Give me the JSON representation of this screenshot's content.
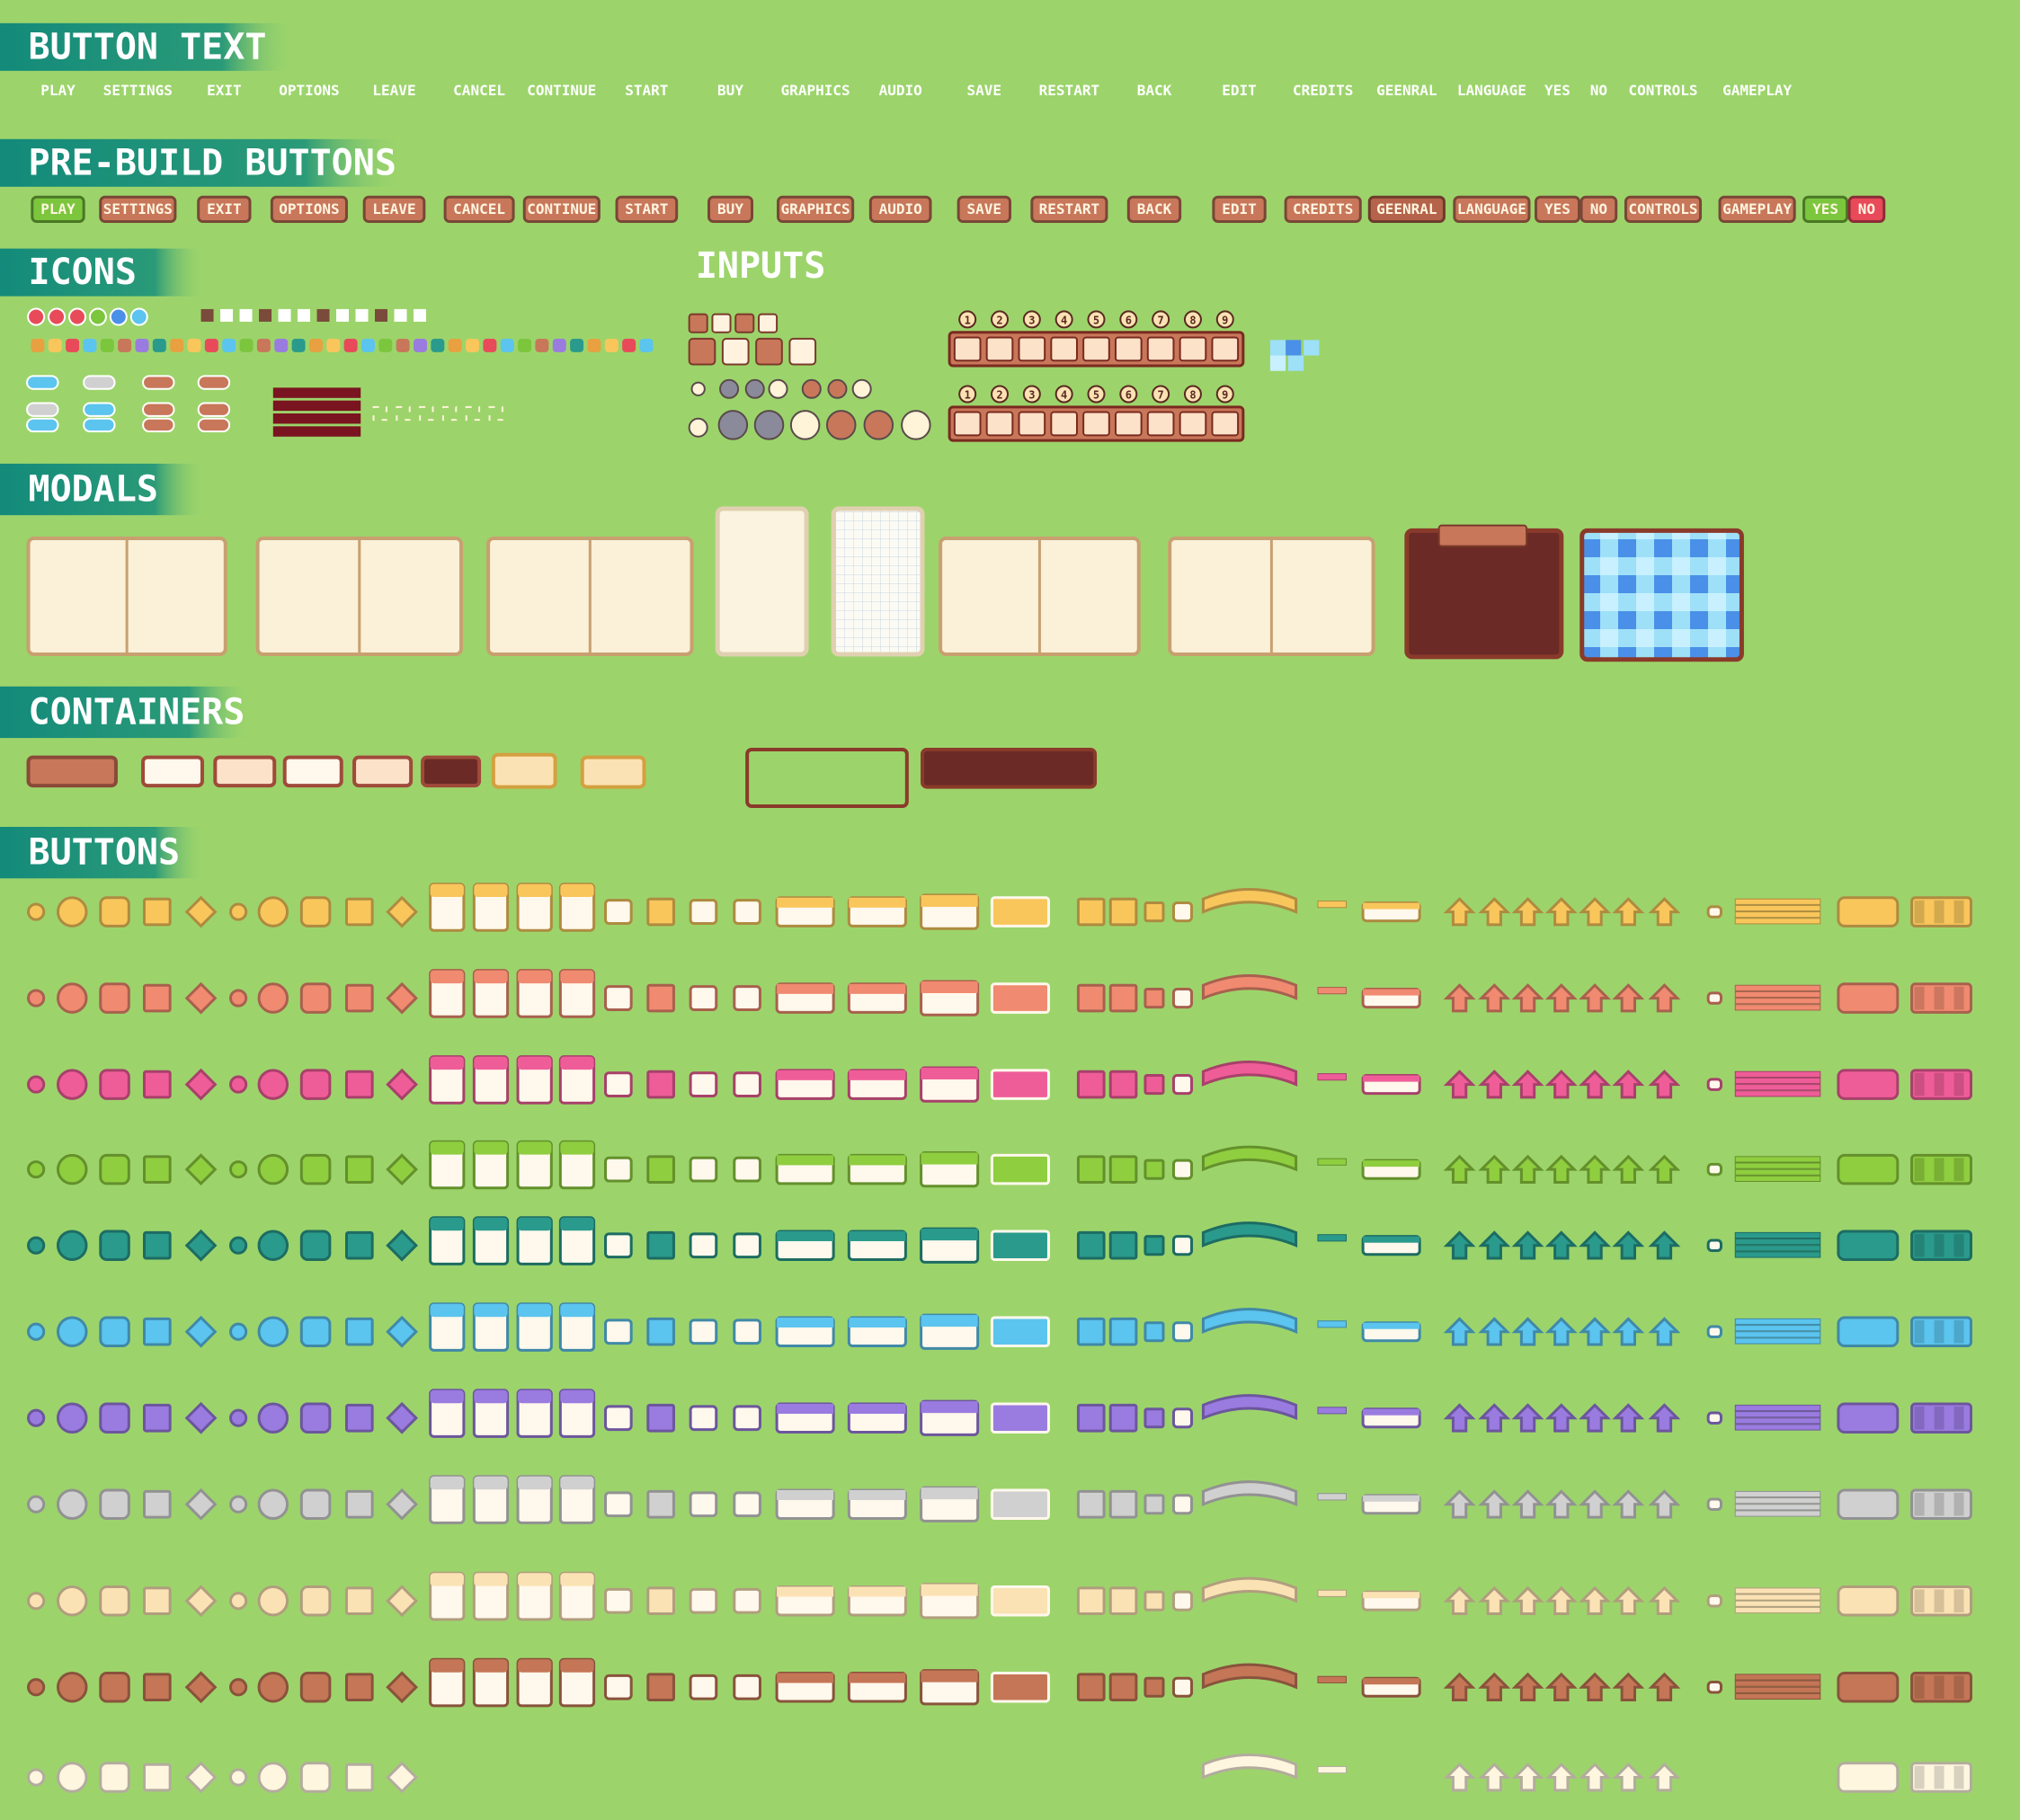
{
  "sections": {
    "button_text": "BUTTON TEXT",
    "prebuild": "PRE-BUILD BUTTONS",
    "icons": "ICONS",
    "inputs": "INPUTS",
    "modals": "MODALS",
    "containers": "CONTAINERS",
    "buttons": "BUTTONS"
  },
  "button_text": [
    "PLAY",
    "SETTINGS",
    "EXIT",
    "OPTIONS",
    "LEAVE",
    "CANCEL",
    "CONTINUE",
    "START",
    "BUY",
    "GRAPHICS",
    "AUDIO",
    "SAVE",
    "RESTART",
    "BACK",
    "EDIT",
    "CREDITS",
    "GEENRAL",
    "LANGUAGE",
    "YES",
    "NO",
    "CONTROLS",
    "GAMEPLAY"
  ],
  "prebuild_buttons": [
    {
      "label": "PLAY",
      "color": "#7cc63e"
    },
    {
      "label": "SETTINGS",
      "color": "#c8775a"
    },
    {
      "label": "EXIT",
      "color": "#c8775a"
    },
    {
      "label": "OPTIONS",
      "color": "#c8775a"
    },
    {
      "label": "LEAVE",
      "color": "#c8775a"
    },
    {
      "label": "CANCEL",
      "color": "#c8775a"
    },
    {
      "label": "CONTINUE",
      "color": "#c8775a"
    },
    {
      "label": "START",
      "color": "#c8775a"
    },
    {
      "label": "BUY",
      "color": "#c8775a"
    },
    {
      "label": "GRAPHICS",
      "color": "#c8775a"
    },
    {
      "label": "AUDIO",
      "color": "#c8775a"
    },
    {
      "label": "SAVE",
      "color": "#c8775a"
    },
    {
      "label": "RESTART",
      "color": "#c8775a"
    },
    {
      "label": "BACK",
      "color": "#c8775a"
    },
    {
      "label": "EDIT",
      "color": "#c8775a"
    },
    {
      "label": "CREDITS",
      "color": "#c8775a"
    },
    {
      "label": "GEENRAL",
      "color": "#b5634a"
    },
    {
      "label": "LANGUAGE",
      "color": "#c8775a"
    },
    {
      "label": "YES",
      "color": "#c8775a"
    },
    {
      "label": "NO",
      "color": "#c8775a"
    },
    {
      "label": "CONTROLS",
      "color": "#c8775a"
    },
    {
      "label": "GAMEPLAY",
      "color": "#c8775a"
    },
    {
      "label": "YES",
      "color": "#7cc63e"
    },
    {
      "label": "NO",
      "color": "#e84a5a"
    }
  ],
  "slot_rows": [
    {
      "numbers": [
        1,
        2,
        3,
        4,
        5,
        6,
        7,
        8,
        9
      ]
    },
    {
      "numbers": [
        1,
        2,
        3,
        4,
        5,
        6,
        7,
        8,
        9
      ]
    }
  ],
  "button_palettes": [
    "#f9c65c",
    "#f08a70",
    "#ef5d98",
    "#8fce3f",
    "#2a9a8c",
    "#5bc4ef",
    "#9a7be0",
    "#d0d0d0",
    "#fbe2b4",
    "#c47656",
    "#fff6e0"
  ]
}
